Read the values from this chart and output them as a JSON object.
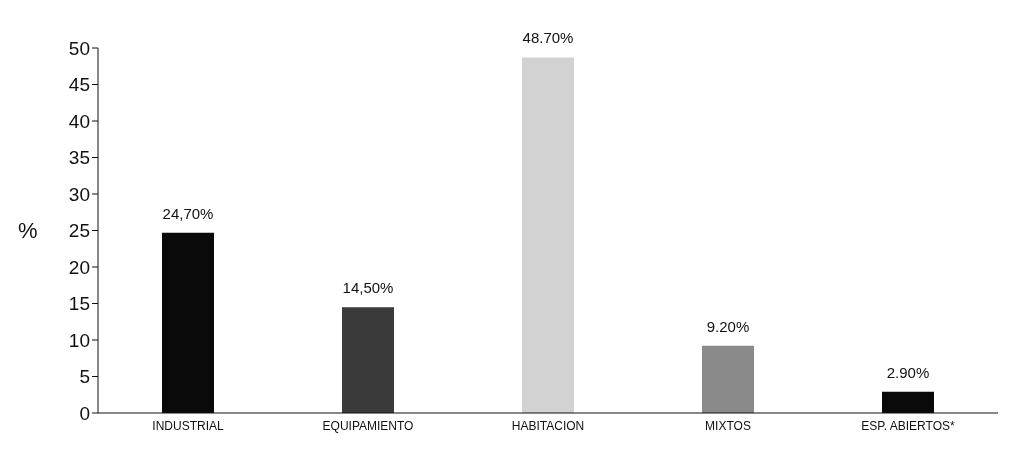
{
  "chart_data": {
    "type": "bar",
    "ylabel": "%",
    "categories": [
      "INDUSTRIAL",
      "EQUIPAMIENTO",
      "HABITACION",
      "MIXTOS",
      "ESP. ABIERTOS*"
    ],
    "values": [
      24.7,
      14.5,
      48.7,
      9.2,
      2.9
    ],
    "colors": [
      "#0a0a0a",
      "#3a3a3a",
      "#d2d2d2",
      "#8a8a8a",
      "#0a0a0a"
    ],
    "value_labels": [
      "24,70%",
      "14,50%",
      "48.70%",
      "9.20%",
      "2.90%"
    ],
    "ylim": [
      0,
      50
    ],
    "yticks": [
      0,
      5,
      10,
      15,
      20,
      25,
      30,
      35,
      40,
      45,
      50
    ],
    "grid": false,
    "legend": false
  }
}
